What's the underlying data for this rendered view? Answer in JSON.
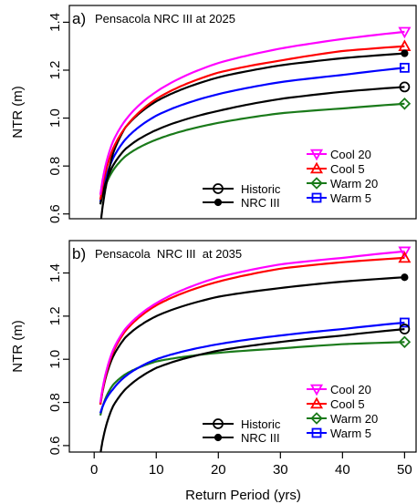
{
  "chart_data": [
    {
      "type": "line",
      "panel_tag": "a)",
      "title": "Pensacola NRC III at 2025",
      "xlabel": "",
      "ylabel": "NTR (m)",
      "xlim": [
        -4,
        52
      ],
      "ylim": [
        0.58,
        1.47
      ],
      "yticks": [
        0.6,
        0.8,
        1.0,
        1.2,
        1.4
      ],
      "ytick_labels": [
        "0.6",
        "0.8",
        "1.0",
        "1.2",
        "1.4"
      ],
      "x": [
        1,
        2,
        3,
        5,
        10,
        20,
        30,
        40,
        50
      ],
      "series": [
        {
          "name": "Cool 20",
          "color": "#ff00ff",
          "marker": "triangle-down",
          "values": [
            0.68,
            0.82,
            0.9,
            0.99,
            1.11,
            1.23,
            1.29,
            1.33,
            1.36
          ]
        },
        {
          "name": "Cool 5",
          "color": "#ff0000",
          "marker": "triangle-up",
          "values": [
            0.66,
            0.79,
            0.87,
            0.96,
            1.08,
            1.19,
            1.24,
            1.28,
            1.3
          ]
        },
        {
          "name": "Warm 20",
          "color": "#1a7a1a",
          "marker": "diamond",
          "values": [
            0.64,
            0.73,
            0.78,
            0.84,
            0.91,
            0.98,
            1.02,
            1.04,
            1.06
          ]
        },
        {
          "name": "Warm 5",
          "color": "#0000ff",
          "marker": "square",
          "values": [
            0.65,
            0.76,
            0.83,
            0.91,
            1.01,
            1.1,
            1.15,
            1.18,
            1.21
          ]
        },
        {
          "name": "Historic",
          "color": "#000000",
          "marker": "circle-open",
          "values": [
            0.64,
            0.74,
            0.8,
            0.87,
            0.95,
            1.03,
            1.08,
            1.11,
            1.13
          ]
        },
        {
          "name": "NRC III",
          "color": "#000000",
          "marker": "circle-filled",
          "values": [
            0.55,
            0.73,
            0.85,
            0.96,
            1.07,
            1.17,
            1.22,
            1.25,
            1.27
          ]
        }
      ],
      "legend": {
        "left": [
          "Historic",
          "NRC III"
        ],
        "right": [
          "Cool 20",
          "Cool 5",
          "Warm 20",
          "Warm 5"
        ],
        "placement": "bottom-right"
      }
    },
    {
      "type": "line",
      "panel_tag": "b)",
      "title": "Pensacola  NRC III  at 2035",
      "xlabel": "Return Period (yrs)",
      "ylabel": "NTR (m)",
      "xlim": [
        -4,
        52
      ],
      "ylim": [
        0.57,
        1.55
      ],
      "xticks": [
        0,
        10,
        20,
        30,
        40,
        50
      ],
      "xtick_labels": [
        "0",
        "10",
        "20",
        "30",
        "40",
        "50"
      ],
      "yticks": [
        0.6,
        0.8,
        1.0,
        1.2,
        1.4
      ],
      "ytick_labels": [
        "0.6",
        "0.8",
        "1.0",
        "1.2",
        "1.4"
      ],
      "x": [
        1,
        2,
        3,
        5,
        10,
        20,
        30,
        40,
        50
      ],
      "series": [
        {
          "name": "Cool 20",
          "color": "#ff00ff",
          "marker": "triangle-down",
          "values": [
            0.8,
            0.95,
            1.04,
            1.14,
            1.26,
            1.38,
            1.44,
            1.47,
            1.5
          ]
        },
        {
          "name": "Cool 5",
          "color": "#ff0000",
          "marker": "triangle-up",
          "values": [
            0.79,
            0.94,
            1.03,
            1.13,
            1.25,
            1.36,
            1.42,
            1.45,
            1.47
          ]
        },
        {
          "name": "Warm 20",
          "color": "#1a7a1a",
          "marker": "diamond",
          "values": [
            0.74,
            0.83,
            0.88,
            0.93,
            0.99,
            1.03,
            1.05,
            1.07,
            1.08
          ]
        },
        {
          "name": "Warm 5",
          "color": "#0000ff",
          "marker": "square",
          "values": [
            0.75,
            0.82,
            0.86,
            0.92,
            1.0,
            1.07,
            1.11,
            1.14,
            1.17
          ]
        },
        {
          "name": "Historic",
          "color": "#000000",
          "marker": "circle-open",
          "values": [
            0.56,
            0.7,
            0.78,
            0.86,
            0.96,
            1.04,
            1.08,
            1.11,
            1.14
          ]
        },
        {
          "name": "NRC III",
          "color": "#000000",
          "marker": "circle-filled",
          "values": [
            0.79,
            0.93,
            1.01,
            1.1,
            1.2,
            1.29,
            1.33,
            1.36,
            1.38
          ]
        }
      ],
      "legend": {
        "left": [
          "Historic",
          "NRC III"
        ],
        "right": [
          "Cool 20",
          "Cool 5",
          "Warm 20",
          "Warm 5"
        ],
        "placement": "bottom-right"
      }
    }
  ]
}
